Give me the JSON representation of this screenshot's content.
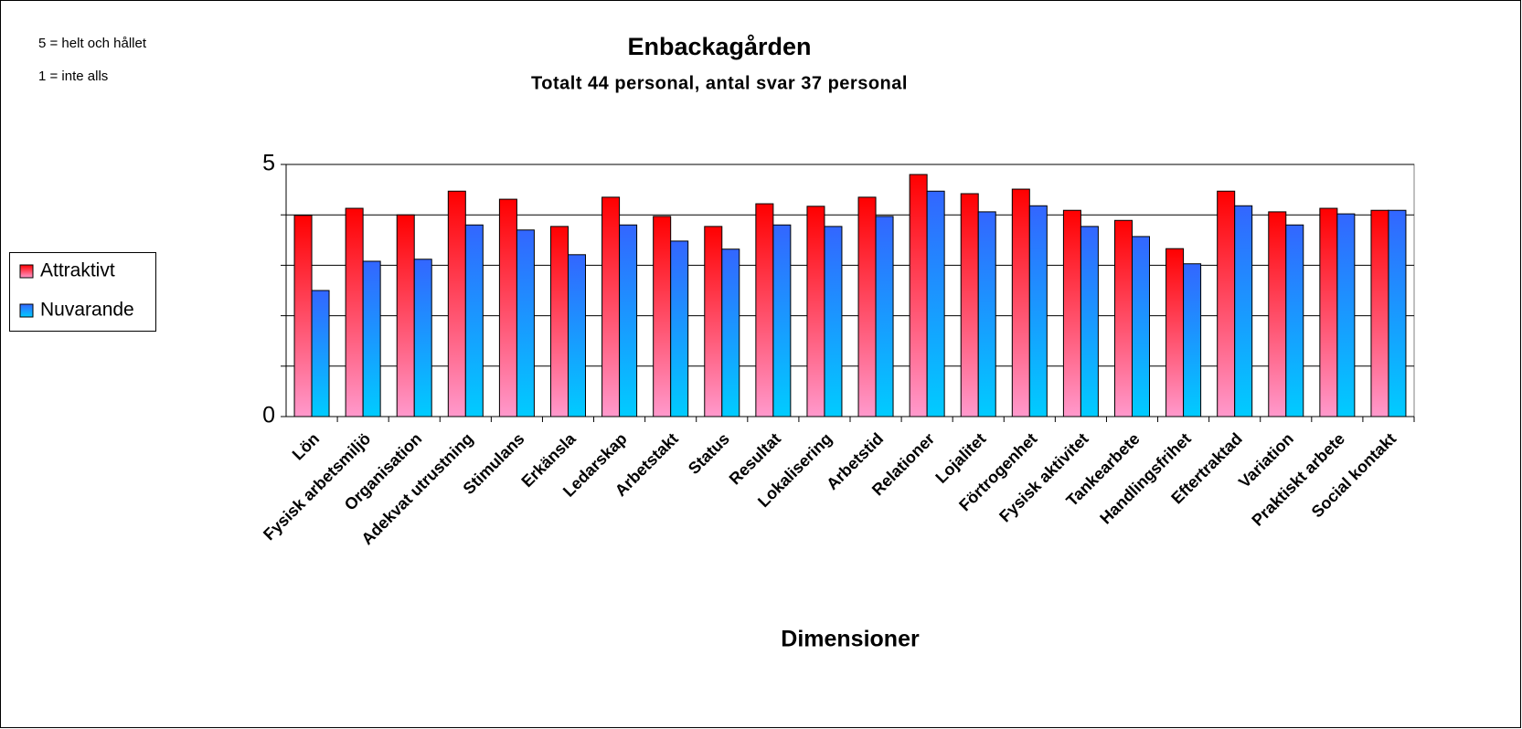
{
  "chart_data": {
    "type": "bar",
    "title": "Enbackagården",
    "subtitle": "Totalt 44 personal, antal svar 37 personal",
    "notes": [
      "5 = helt och hållet",
      "1 = inte alls"
    ],
    "x_label": "Dimensioner",
    "categories": [
      "Lön",
      "Fysisk arbetsmiljö",
      "Organisation",
      "Adekvat utrustning",
      "Stimulans",
      "Erkänsla",
      "Ledarskap",
      "Arbetstakt",
      "Status",
      "Resultat",
      "Lokalisering",
      "Arbetstid",
      "Relationer",
      "Lojalitet",
      "Förtrogenhet",
      "Fysisk aktivitet",
      "Tankearbete",
      "Handlingsfrihet",
      "Eftertraktad",
      "Variation",
      "Praktiskt arbete",
      "Social kontakt"
    ],
    "series": [
      {
        "name": "Attraktivt",
        "color": "#ff0000",
        "gradient_to": "#ff99cc",
        "values": [
          3.99,
          4.13,
          4.0,
          4.47,
          4.31,
          3.77,
          4.35,
          3.97,
          3.77,
          4.22,
          4.17,
          4.35,
          4.8,
          4.42,
          4.51,
          4.09,
          3.89,
          3.33,
          4.47,
          4.06,
          4.13,
          4.09
        ]
      },
      {
        "name": "Nuvarande",
        "color": "#3366ff",
        "gradient_to": "#00ccff",
        "values": [
          2.5,
          3.08,
          3.12,
          3.8,
          3.7,
          3.21,
          3.8,
          3.48,
          3.32,
          3.8,
          3.77,
          3.97,
          4.47,
          4.06,
          4.18,
          3.77,
          3.57,
          3.03,
          4.18,
          3.8,
          4.02,
          4.09
        ]
      }
    ],
    "ylim": [
      0,
      5
    ],
    "yticks": [
      0,
      5
    ],
    "ygrid": [
      1,
      2,
      3,
      4,
      5
    ],
    "grid": true,
    "legend": "left"
  }
}
